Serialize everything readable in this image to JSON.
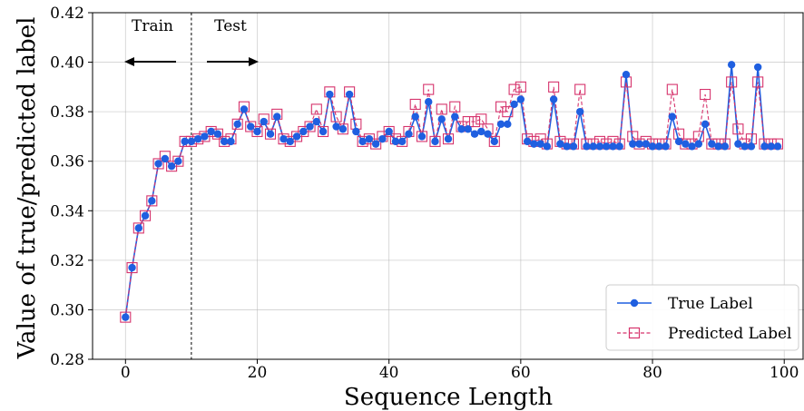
{
  "chart_data": {
    "type": "line",
    "title": "",
    "xlabel": "Sequence Length",
    "ylabel": "Value of true/predicted label",
    "xlim": [
      -5,
      103
    ],
    "ylim": [
      0.28,
      0.42
    ],
    "grid": true,
    "legend_position": "bottom-right",
    "xticks": [
      0,
      20,
      40,
      60,
      80,
      100
    ],
    "yticks": [
      0.28,
      0.3,
      0.32,
      0.34,
      0.36,
      0.38,
      0.4,
      0.42
    ],
    "xtick_labels": [
      "0",
      "20",
      "40",
      "60",
      "80",
      "100"
    ],
    "ytick_labels": [
      "0.28",
      "0.30",
      "0.32",
      "0.34",
      "0.36",
      "0.38",
      "0.40",
      "0.42"
    ],
    "divider_x": 10,
    "annotations": {
      "train": "Train",
      "test": "Test"
    },
    "colors": {
      "true": "#1f5fe0",
      "predicted": "#d6336c"
    },
    "x": [
      0,
      1,
      2,
      3,
      4,
      5,
      6,
      7,
      8,
      9,
      10,
      11,
      12,
      13,
      14,
      15,
      16,
      17,
      18,
      19,
      20,
      21,
      22,
      23,
      24,
      25,
      26,
      27,
      28,
      29,
      30,
      31,
      32,
      33,
      34,
      35,
      36,
      37,
      38,
      39,
      40,
      41,
      42,
      43,
      44,
      45,
      46,
      47,
      48,
      49,
      50,
      51,
      52,
      53,
      54,
      55,
      56,
      57,
      58,
      59,
      60,
      61,
      62,
      63,
      64,
      65,
      66,
      67,
      68,
      69,
      70,
      71,
      72,
      73,
      74,
      75,
      76,
      77,
      78,
      79,
      80,
      81,
      82,
      83,
      84,
      85,
      86,
      87,
      88,
      89,
      90,
      91,
      92,
      93,
      94,
      95,
      96,
      97,
      98,
      99
    ],
    "series": [
      {
        "name": "True Label",
        "style": "solid-circle",
        "values": [
          0.297,
          0.317,
          0.333,
          0.338,
          0.344,
          0.359,
          0.361,
          0.358,
          0.36,
          0.368,
          0.368,
          0.369,
          0.37,
          0.372,
          0.371,
          0.368,
          0.368,
          0.375,
          0.381,
          0.374,
          0.372,
          0.376,
          0.371,
          0.378,
          0.369,
          0.368,
          0.37,
          0.372,
          0.374,
          0.376,
          0.372,
          0.387,
          0.374,
          0.373,
          0.387,
          0.372,
          0.368,
          0.369,
          0.367,
          0.369,
          0.372,
          0.368,
          0.368,
          0.371,
          0.378,
          0.37,
          0.384,
          0.368,
          0.377,
          0.369,
          0.378,
          0.373,
          0.373,
          0.371,
          0.372,
          0.371,
          0.368,
          0.375,
          0.375,
          0.383,
          0.385,
          0.368,
          0.367,
          0.367,
          0.366,
          0.385,
          0.367,
          0.366,
          0.366,
          0.38,
          0.366,
          0.366,
          0.366,
          0.366,
          0.366,
          0.366,
          0.395,
          0.367,
          0.367,
          0.367,
          0.366,
          0.366,
          0.366,
          0.378,
          0.368,
          0.367,
          0.366,
          0.367,
          0.375,
          0.367,
          0.366,
          0.366,
          0.399,
          0.367,
          0.366,
          0.366,
          0.398,
          0.366,
          0.366,
          0.366
        ]
      },
      {
        "name": "Predicted Label",
        "style": "dashed-square",
        "values": [
          0.297,
          0.317,
          0.333,
          0.338,
          0.344,
          0.359,
          0.362,
          0.358,
          0.36,
          0.368,
          0.368,
          0.369,
          0.37,
          0.372,
          0.371,
          0.368,
          0.369,
          0.375,
          0.382,
          0.374,
          0.372,
          0.377,
          0.371,
          0.379,
          0.369,
          0.368,
          0.37,
          0.372,
          0.374,
          0.381,
          0.372,
          0.388,
          0.378,
          0.373,
          0.388,
          0.375,
          0.368,
          0.369,
          0.367,
          0.37,
          0.372,
          0.369,
          0.368,
          0.372,
          0.383,
          0.37,
          0.389,
          0.368,
          0.381,
          0.369,
          0.382,
          0.374,
          0.376,
          0.376,
          0.377,
          0.373,
          0.368,
          0.382,
          0.38,
          0.389,
          0.39,
          0.369,
          0.368,
          0.369,
          0.367,
          0.39,
          0.368,
          0.367,
          0.367,
          0.389,
          0.367,
          0.367,
          0.368,
          0.367,
          0.368,
          0.367,
          0.392,
          0.37,
          0.367,
          0.368,
          0.367,
          0.367,
          0.367,
          0.389,
          0.371,
          0.367,
          0.367,
          0.37,
          0.387,
          0.367,
          0.367,
          0.367,
          0.392,
          0.373,
          0.367,
          0.369,
          0.392,
          0.367,
          0.367,
          0.367
        ]
      }
    ]
  }
}
